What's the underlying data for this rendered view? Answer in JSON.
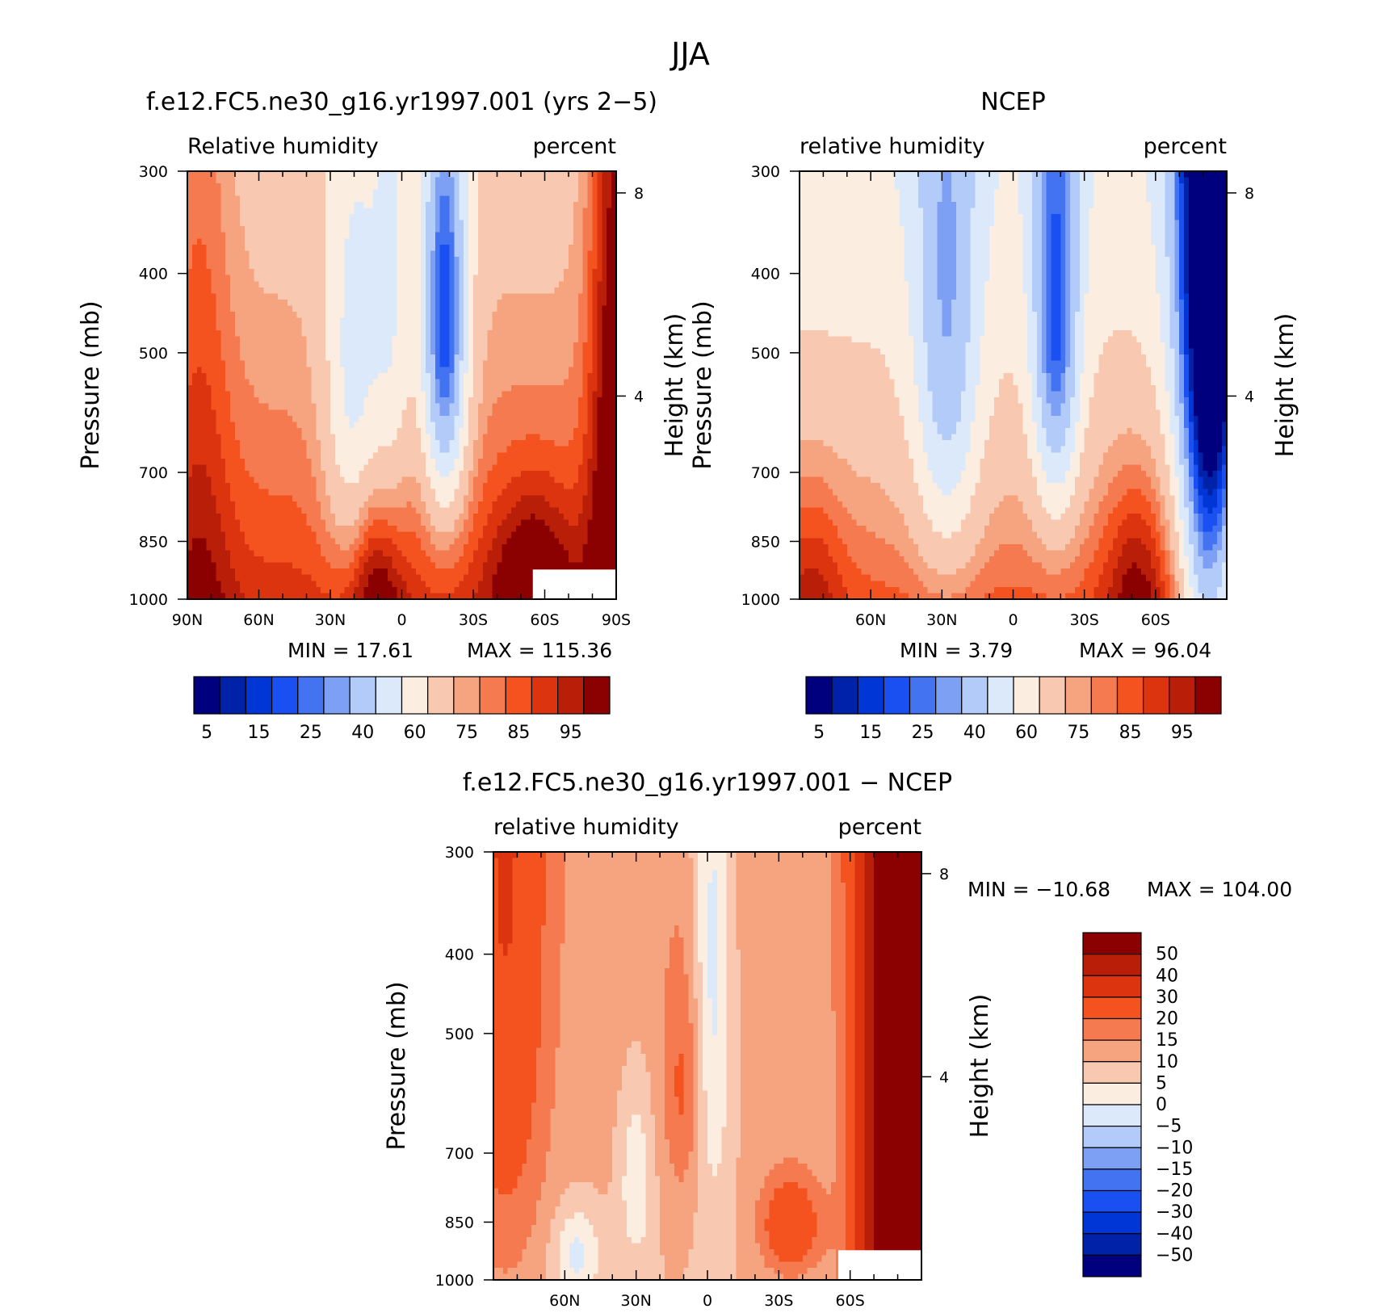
{
  "figure": {
    "title": "JJA"
  },
  "chart_data": [
    {
      "type": "heatmap",
      "title": "f.e12.FC5.ne30_g16.yr1997.001 (yrs 2-5)",
      "left_label": "Relative humidity",
      "right_label": "percent",
      "ylabel": "Pressure (mb)",
      "ylabel_right": "Height (km)",
      "x_ticks": [
        "90N",
        "60N",
        "30N",
        "0",
        "30S",
        "60S",
        "90S"
      ],
      "x_tick_values": [
        90,
        60,
        30,
        0,
        -30,
        -60,
        -90
      ],
      "xlim": [
        90,
        -90
      ],
      "y_ticks": [
        "300",
        "400",
        "500",
        "700",
        "850",
        "1000"
      ],
      "y_tick_values": [
        300,
        400,
        500,
        700,
        850,
        1000
      ],
      "ylim": [
        1000,
        300
      ],
      "height_ticks": [
        "8",
        "4"
      ],
      "height_tick_values": [
        8,
        4
      ],
      "min_label": "MIN =   17.61",
      "max_label": "MAX =  115.36",
      "min_value": 17.61,
      "max_value": 115.36,
      "colorbar_orientation": "horizontal",
      "colorbar_labels": [
        "5",
        "15",
        "25",
        "40",
        "60",
        "75",
        "85",
        "95"
      ],
      "contour_levels": [
        5,
        10,
        15,
        20,
        25,
        30,
        40,
        50,
        60,
        70,
        75,
        80,
        85,
        90,
        95
      ],
      "colormap": [
        "#00007f",
        "#0022a8",
        "#0036d6",
        "#1a4ff2",
        "#4473f2",
        "#7da0f5",
        "#b3cbf8",
        "#dbe9fa",
        "#fbeee0",
        "#f8c9b0",
        "#f6a37f",
        "#f57a4f",
        "#f4531f",
        "#dd3410",
        "#b81e08",
        "#8b0000"
      ],
      "missing_region": {
        "lat_from": -55,
        "lat_to": -90,
        "p_from": 920,
        "p_to": 1000
      }
    },
    {
      "type": "heatmap",
      "title": "NCEP",
      "left_label": "relative humidity",
      "right_label": "percent",
      "ylabel": "Pressure (mb)",
      "ylabel_right": "Height (km)",
      "x_ticks": [
        "60N",
        "30N",
        "0",
        "30S",
        "60S"
      ],
      "x_tick_values": [
        60,
        30,
        0,
        -30,
        -60
      ],
      "xlim": [
        90,
        -90
      ],
      "y_ticks": [
        "300",
        "400",
        "500",
        "700",
        "850",
        "1000"
      ],
      "y_tick_values": [
        300,
        400,
        500,
        700,
        850,
        1000
      ],
      "ylim": [
        1000,
        300
      ],
      "height_ticks": [
        "8",
        "4"
      ],
      "height_tick_values": [
        8,
        4
      ],
      "min_label": "MIN =    3.79",
      "max_label": "MAX =   96.04",
      "min_value": 3.79,
      "max_value": 96.04,
      "colorbar_orientation": "horizontal",
      "colorbar_labels": [
        "5",
        "15",
        "25",
        "40",
        "60",
        "75",
        "85",
        "95"
      ],
      "contour_levels": [
        5,
        10,
        15,
        20,
        25,
        30,
        40,
        50,
        60,
        70,
        75,
        80,
        85,
        90,
        95
      ],
      "colormap": [
        "#00007f",
        "#0022a8",
        "#0036d6",
        "#1a4ff2",
        "#4473f2",
        "#7da0f5",
        "#b3cbf8",
        "#dbe9fa",
        "#fbeee0",
        "#f8c9b0",
        "#f6a37f",
        "#f57a4f",
        "#f4531f",
        "#dd3410",
        "#b81e08",
        "#8b0000"
      ]
    },
    {
      "type": "heatmap",
      "title": "f.e12.FC5.ne30_g16.yr1997.001 - NCEP",
      "left_label": "relative humidity",
      "right_label": "percent",
      "ylabel": "Pressure (mb)",
      "ylabel_right": "Height (km)",
      "x_ticks": [
        "60N",
        "30N",
        "0",
        "30S",
        "60S"
      ],
      "x_tick_values": [
        60,
        30,
        0,
        -30,
        -60
      ],
      "xlim": [
        90,
        -90
      ],
      "y_ticks": [
        "300",
        "400",
        "500",
        "700",
        "850",
        "1000"
      ],
      "y_tick_values": [
        300,
        400,
        500,
        700,
        850,
        1000
      ],
      "ylim": [
        1000,
        300
      ],
      "height_ticks": [
        "8",
        "4"
      ],
      "height_tick_values": [
        8,
        4
      ],
      "min_label": "MIN = -10.68",
      "max_label": "MAX =  104.00",
      "min_value": -10.68,
      "max_value": 104.0,
      "colorbar_orientation": "vertical",
      "colorbar_labels": [
        "50",
        "40",
        "30",
        "20",
        "15",
        "10",
        "5",
        "0",
        "-5",
        "-10",
        "-15",
        "-20",
        "-30",
        "-40",
        "-50"
      ],
      "contour_levels": [
        -50,
        -40,
        -30,
        -20,
        -15,
        -10,
        -5,
        0,
        5,
        10,
        15,
        20,
        30,
        40,
        50
      ],
      "colormap": [
        "#00007f",
        "#0022a8",
        "#0036d6",
        "#1a4ff2",
        "#4473f2",
        "#7da0f5",
        "#b3cbf8",
        "#dbe9fa",
        "#fbeee0",
        "#f8c9b0",
        "#f6a37f",
        "#f57a4f",
        "#f4531f",
        "#dd3410",
        "#b81e08",
        "#8b0000"
      ],
      "missing_region": {
        "lat_from": -55,
        "lat_to": -90,
        "p_from": 920,
        "p_to": 1000
      }
    }
  ]
}
